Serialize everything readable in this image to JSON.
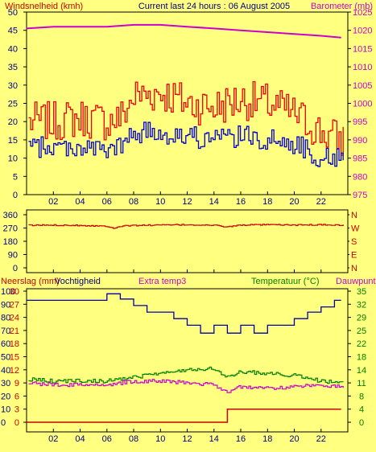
{
  "header": {
    "wind_label": "Windsnelheid (kmh)",
    "title": "Current last 24 hours : 06 August 2005",
    "baro_label": "Barometer (mb)"
  },
  "lower_labels": {
    "rain": "Neerslag (mm)",
    "humidity": "Vochtigheid",
    "extra": "Extra temp3",
    "temperature": "Temperatuur (°C)",
    "dewpoint": "Dauwpunt"
  },
  "colors": {
    "background": "#ffff80",
    "wind_gust": "#ee0000",
    "wind_avg": "#0000cc",
    "barometer": "#cc00cc",
    "direction": "#cc0000",
    "humidity": "#0000aa",
    "temperature": "#008000",
    "dewpoint": "#cc00cc",
    "rain": "#cc0000"
  },
  "chart_data": [
    {
      "type": "line",
      "name": "wind-barometer",
      "x_ticks": [
        "02",
        "04",
        "06",
        "08",
        "10",
        "12",
        "14",
        "16",
        "18",
        "20",
        "22"
      ],
      "xlim": [
        0,
        24
      ],
      "y_left_ticks": [
        "50",
        "45",
        "40",
        "35",
        "30",
        "25",
        "20",
        "15",
        "10",
        "5",
        "0"
      ],
      "ylim_left": [
        0,
        50
      ],
      "y_right_ticks": [
        "1025",
        "1020",
        "1015",
        "1010",
        "1005",
        "1000",
        "995",
        "990",
        "985",
        "980",
        "975"
      ],
      "ylim_right": [
        975,
        1025
      ],
      "gust_trend": [
        [
          0,
          20
        ],
        [
          2,
          20
        ],
        [
          4,
          21
        ],
        [
          6,
          20
        ],
        [
          7,
          21
        ],
        [
          8,
          27
        ],
        [
          10,
          28
        ],
        [
          12,
          25
        ],
        [
          14,
          24
        ],
        [
          16,
          26
        ],
        [
          18,
          25
        ],
        [
          20,
          22
        ],
        [
          22,
          17
        ],
        [
          23.5,
          15
        ]
      ],
      "avg_trend": [
        [
          0,
          13
        ],
        [
          2,
          13
        ],
        [
          4,
          13
        ],
        [
          6,
          12
        ],
        [
          7,
          13
        ],
        [
          8,
          17
        ],
        [
          10,
          17
        ],
        [
          12,
          16
        ],
        [
          14,
          15
        ],
        [
          16,
          16
        ],
        [
          18,
          15
        ],
        [
          20,
          14
        ],
        [
          22,
          10
        ],
        [
          23.5,
          10
        ]
      ],
      "barometer": [
        [
          0,
          1020.5
        ],
        [
          2,
          1021
        ],
        [
          4,
          1021
        ],
        [
          6,
          1021
        ],
        [
          8,
          1021.5
        ],
        [
          10,
          1021.5
        ],
        [
          12,
          1021
        ],
        [
          14,
          1020.5
        ],
        [
          16,
          1020
        ],
        [
          18,
          1019.5
        ],
        [
          20,
          1019
        ],
        [
          22,
          1018.5
        ],
        [
          23.5,
          1018
        ]
      ]
    },
    {
      "type": "line",
      "name": "wind-direction",
      "x_ticks": [],
      "xlim": [
        0,
        24
      ],
      "y_left_ticks": [
        "360",
        "270",
        "180",
        "90",
        "0"
      ],
      "ylim": [
        0,
        360
      ],
      "y_right_labels": [
        "N",
        "W",
        "S",
        "E",
        "N"
      ],
      "direction": [
        [
          0,
          288
        ],
        [
          2,
          290
        ],
        [
          4,
          288
        ],
        [
          6,
          282
        ],
        [
          6.5,
          270
        ],
        [
          7,
          282
        ],
        [
          8,
          288
        ],
        [
          10,
          290
        ],
        [
          12,
          292
        ],
        [
          14,
          288
        ],
        [
          15,
          278
        ],
        [
          16,
          290
        ],
        [
          18,
          292
        ],
        [
          20,
          290
        ],
        [
          22,
          292
        ],
        [
          23.5,
          290
        ]
      ]
    },
    {
      "type": "line",
      "name": "humidity-temperature",
      "x_ticks": [
        "02",
        "04",
        "06",
        "08",
        "10",
        "12",
        "14",
        "16",
        "18",
        "20",
        "22"
      ],
      "xlim": [
        0,
        24
      ],
      "y_rain_ticks": [
        "30",
        "27",
        "24",
        "21",
        "18",
        "15",
        "12",
        "9",
        "6",
        "3",
        "0"
      ],
      "y_hum_ticks": [
        "100",
        "90",
        "80",
        "70",
        "60",
        "50",
        "40",
        "30",
        "20",
        "10",
        "0"
      ],
      "ylim_humidity": [
        0,
        100
      ],
      "y_temp_ticks": [
        "35",
        "32",
        "29",
        "25",
        "22",
        "18",
        "14",
        "11",
        "8",
        "4",
        "0"
      ],
      "ylim_temp": [
        0,
        35
      ],
      "humidity": [
        [
          0,
          93
        ],
        [
          6,
          93
        ],
        [
          6,
          98
        ],
        [
          7,
          98
        ],
        [
          7,
          94
        ],
        [
          8,
          94
        ],
        [
          8,
          89
        ],
        [
          9,
          89
        ],
        [
          9,
          84
        ],
        [
          11,
          84
        ],
        [
          11,
          79
        ],
        [
          12,
          79
        ],
        [
          12,
          74
        ],
        [
          13,
          74
        ],
        [
          13,
          68
        ],
        [
          14,
          68
        ],
        [
          14,
          74
        ],
        [
          15,
          74
        ],
        [
          15,
          68
        ],
        [
          16,
          68
        ],
        [
          16,
          74
        ],
        [
          17,
          74
        ],
        [
          17,
          68
        ],
        [
          18,
          68
        ],
        [
          18,
          74
        ],
        [
          20,
          74
        ],
        [
          20,
          79
        ],
        [
          21,
          79
        ],
        [
          21,
          84
        ],
        [
          22,
          84
        ],
        [
          22,
          88
        ],
        [
          23,
          88
        ],
        [
          23,
          93
        ],
        [
          23.5,
          93
        ]
      ],
      "temperature": [
        [
          0,
          11.5
        ],
        [
          2,
          11
        ],
        [
          4,
          11
        ],
        [
          6,
          11
        ],
        [
          8,
          12
        ],
        [
          10,
          13
        ],
        [
          12,
          14
        ],
        [
          14,
          14.5
        ],
        [
          15,
          12
        ],
        [
          16,
          13.5
        ],
        [
          18,
          13
        ],
        [
          20,
          12.5
        ],
        [
          22,
          11
        ],
        [
          23.5,
          10.5
        ]
      ],
      "dewpoint": [
        [
          0,
          10.5
        ],
        [
          2,
          10
        ],
        [
          4,
          10
        ],
        [
          6,
          10
        ],
        [
          8,
          11
        ],
        [
          10,
          11
        ],
        [
          12,
          10.5
        ],
        [
          14,
          10
        ],
        [
          15,
          8
        ],
        [
          16,
          9.5
        ],
        [
          18,
          9
        ],
        [
          20,
          9.5
        ],
        [
          22,
          10
        ],
        [
          23.5,
          9.5
        ]
      ],
      "rain": [
        [
          0,
          0
        ],
        [
          15,
          0
        ],
        [
          15,
          3
        ],
        [
          23.5,
          3
        ]
      ]
    }
  ]
}
